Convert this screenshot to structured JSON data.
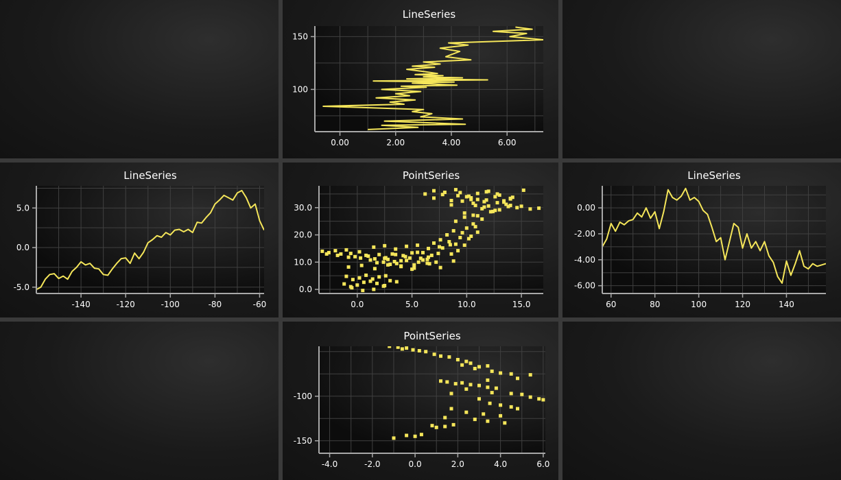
{
  "colors": {
    "series": "#f5e65a",
    "axis": "#a8a8a8",
    "grid": "#404040",
    "text": "#ffffff"
  },
  "chart_data": [
    {
      "id": "top",
      "type": "line",
      "title": "LineSeries",
      "xlim": [
        -0.9,
        7.3
      ],
      "ylim": [
        60,
        160
      ],
      "xticks": [
        0,
        2,
        4,
        6
      ],
      "xtick_labels": [
        "0.00",
        "2.00",
        "4.00",
        "6.00"
      ],
      "yticks": [
        100,
        150
      ],
      "ytick_labels": [
        "100",
        "150"
      ],
      "series": [
        {
          "x": [
            1.0,
            2.8,
            1.5,
            4.5,
            1.6,
            4.4,
            2.9,
            3.3,
            2.6,
            3.0,
            -0.6,
            2.3,
            1.8,
            2.7,
            1.3,
            2.5,
            2.0,
            2.9,
            1.5,
            3.1,
            2.2,
            4.2,
            2.6,
            4.1,
            1.2,
            5.3,
            2.4,
            4.4,
            3.0,
            3.7,
            2.7,
            3.5,
            3.0,
            2.4,
            3.4,
            2.6,
            3.6,
            3.0,
            4.7,
            3.8,
            4.0,
            4.3,
            3.6,
            4.6,
            3.9,
            7.3,
            6.1,
            6.7,
            5.5,
            6.9,
            6.3
          ],
          "y": [
            62,
            64,
            66,
            67,
            70,
            72,
            74,
            77,
            79,
            81,
            84,
            86,
            88,
            90,
            92,
            94,
            96,
            98,
            100,
            102,
            103,
            104,
            106,
            107,
            108,
            109,
            110,
            111,
            112,
            113,
            114,
            115,
            117,
            119,
            121,
            122,
            124,
            126,
            128,
            131,
            133,
            136,
            139,
            142,
            144,
            147,
            150,
            153,
            155,
            157,
            159
          ]
        }
      ]
    },
    {
      "id": "left",
      "type": "line",
      "title": "LineSeries",
      "xlim": [
        -160,
        -58
      ],
      "ylim": [
        -5.8,
        7.8
      ],
      "xticks": [
        -140,
        -120,
        -100,
        -80,
        -60
      ],
      "xtick_labels": [
        "-140",
        "-120",
        "-100",
        "-80",
        "-60"
      ],
      "yticks": [
        -5,
        0,
        5
      ],
      "ytick_labels": [
        "-5.0",
        "0.0",
        "5.0"
      ],
      "series": [
        {
          "x": [
            -160,
            -158,
            -156,
            -154,
            -152,
            -150,
            -148,
            -146,
            -144,
            -142,
            -140,
            -138,
            -136,
            -134,
            -132,
            -130,
            -128,
            -126,
            -124,
            -122,
            -120,
            -118,
            -116,
            -114,
            -112,
            -110,
            -108,
            -106,
            -104,
            -102,
            -100,
            -98,
            -96,
            -94,
            -92,
            -90,
            -88,
            -86,
            -84,
            -82,
            -80,
            -78,
            -76,
            -74,
            -72,
            -70,
            -68,
            -66,
            -64,
            -62,
            -60,
            -58
          ],
          "y": [
            -5.3,
            -5.0,
            -4.0,
            -3.4,
            -3.3,
            -3.9,
            -3.6,
            -4.0,
            -3.0,
            -2.5,
            -1.8,
            -2.2,
            -2.0,
            -2.6,
            -2.7,
            -3.4,
            -3.5,
            -2.7,
            -2.0,
            -1.4,
            -1.3,
            -2.0,
            -0.7,
            -1.4,
            -0.6,
            0.6,
            1.0,
            1.5,
            1.3,
            1.9,
            1.6,
            2.2,
            2.3,
            2.0,
            2.3,
            1.9,
            3.2,
            3.1,
            3.8,
            4.4,
            5.5,
            6.0,
            6.6,
            6.3,
            6.0,
            6.9,
            7.2,
            6.3,
            5.0,
            5.5,
            3.4,
            2.2
          ]
        }
      ]
    },
    {
      "id": "right",
      "type": "line",
      "title": "LineSeries",
      "xlim": [
        56,
        158
      ],
      "ylim": [
        -6.6,
        1.7
      ],
      "xticks": [
        60,
        80,
        100,
        120,
        140
      ],
      "xtick_labels": [
        "60",
        "80",
        "100",
        "120",
        "140"
      ],
      "yticks": [
        -6,
        -4,
        -2,
        0
      ],
      "ytick_labels": [
        "-6.00",
        "-4.00",
        "-2.00",
        "0.00"
      ],
      "series": [
        {
          "x": [
            56,
            58,
            60,
            62,
            64,
            66,
            68,
            70,
            72,
            74,
            76,
            78,
            80,
            82,
            84,
            86,
            88,
            90,
            92,
            94,
            96,
            98,
            100,
            102,
            104,
            106,
            108,
            110,
            112,
            114,
            116,
            118,
            120,
            122,
            124,
            126,
            128,
            130,
            132,
            134,
            136,
            138,
            140,
            142,
            144,
            146,
            148,
            150,
            152,
            154,
            156,
            158
          ],
          "y": [
            -3.0,
            -2.4,
            -1.2,
            -1.8,
            -1.1,
            -1.3,
            -1.0,
            -0.9,
            -0.4,
            -0.7,
            0.0,
            -0.8,
            -0.3,
            -1.6,
            -0.3,
            1.4,
            0.8,
            0.6,
            0.9,
            1.5,
            0.6,
            0.8,
            0.5,
            -0.2,
            -0.5,
            -1.5,
            -2.6,
            -2.3,
            -4.0,
            -2.6,
            -1.2,
            -1.5,
            -3.1,
            -2.0,
            -3.1,
            -2.6,
            -3.3,
            -2.6,
            -3.7,
            -4.2,
            -5.3,
            -5.8,
            -4.1,
            -5.2,
            -4.3,
            -3.3,
            -4.5,
            -4.7,
            -4.3,
            -4.5,
            -4.4,
            -4.3
          ]
        }
      ]
    },
    {
      "id": "center",
      "type": "scatter",
      "title": "PointSeries",
      "xlim": [
        -3.5,
        17.0
      ],
      "ylim": [
        -1.5,
        38.0
      ],
      "xticks": [
        0,
        5,
        10,
        15
      ],
      "xtick_labels": [
        "0.0",
        "5.0",
        "10.0",
        "15.0"
      ],
      "yticks": [
        0,
        10,
        20,
        30
      ],
      "ytick_labels": [
        "0.0",
        "10.0",
        "20.0",
        "30.0"
      ],
      "series": [
        {
          "x": [
            -3.2,
            -2.6,
            -2.0,
            -1.5,
            -1.0,
            -0.6,
            -0.2,
            0.3,
            0.8,
            1.2,
            1.6,
            2.0,
            2.4,
            2.8,
            3.2,
            3.6,
            4.0,
            4.4,
            4.8,
            5.2,
            5.6,
            6.0,
            6.4,
            6.8,
            7.2,
            -2.8,
            -1.8,
            -0.8,
            0.2,
            1.0,
            1.8,
            2.6,
            3.4,
            4.2,
            5.0,
            5.8,
            6.6,
            7.4,
            -1.0,
            -0.4,
            0.2,
            0.8,
            1.4,
            2.0,
            2.6,
            -1.2,
            -0.6,
            0.0,
            0.6,
            1.2,
            1.8,
            2.4,
            3.0,
            3.6,
            1.5,
            2.5,
            3.5,
            4.5,
            5.5,
            6.5,
            7.5,
            8.5,
            -0.8,
            0.4,
            1.6,
            2.8,
            4.0,
            5.2,
            6.4,
            7.6,
            8.8,
            7.0,
            7.6,
            8.2,
            8.8,
            9.4,
            10.0,
            10.6,
            7.8,
            8.4,
            9.0,
            9.6,
            10.2,
            10.8,
            8.6,
            9.2,
            9.8,
            10.4,
            11.0,
            9.0,
            9.8,
            10.6,
            11.4,
            12.2,
            6.2,
            7.0,
            7.8,
            8.6,
            9.4,
            10.2,
            11.0,
            11.8,
            12.6,
            13.4,
            14.2,
            15.0,
            15.8,
            16.6,
            7.0,
            8.0,
            9.0,
            10.0,
            11.0,
            12.0,
            13.0,
            14.0,
            8.6,
            9.6,
            10.6,
            11.6,
            12.6,
            13.6,
            14.6,
            9.8,
            10.8,
            11.8,
            12.8,
            13.8,
            10.4,
            11.4,
            12.4,
            13.4,
            11.0,
            12.0,
            13.0,
            14.0,
            9.2,
            10.4,
            11.6,
            12.8,
            14.0,
            15.2,
            2.5,
            3.5,
            4.5,
            5.5,
            6.5,
            3.0,
            4.0,
            5.0,
            6.0,
            -0.5,
            0.5,
            1.5,
            2.5
          ],
          "y": [
            14.0,
            13.5,
            14.2,
            13.0,
            14.5,
            13.2,
            12.0,
            11.5,
            12.5,
            10.8,
            11.2,
            12.8,
            10.0,
            11.0,
            13.0,
            9.5,
            10.5,
            12.0,
            11.5,
            9.0,
            10.0,
            13.5,
            11.0,
            12.5,
            10.0,
            13.0,
            12.5,
            11.8,
            13.8,
            12.2,
            9.8,
            11.6,
            10.2,
            12.4,
            13.4,
            11.4,
            9.4,
            13.2,
            4.8,
            3.6,
            4.2,
            5.2,
            3.8,
            4.6,
            5.0,
            2.0,
            1.0,
            1.6,
            2.6,
            3.0,
            2.2,
            1.2,
            3.2,
            2.8,
            15.5,
            16.0,
            14.8,
            15.8,
            16.2,
            15.0,
            15.6,
            16.4,
            8.2,
            8.8,
            7.6,
            9.0,
            8.4,
            7.8,
            9.6,
            8.0,
            10.4,
            17.0,
            18.2,
            20.0,
            21.5,
            19.0,
            22.5,
            24.0,
            15.2,
            17.5,
            16.6,
            20.8,
            18.6,
            23.0,
            13.0,
            14.2,
            16.2,
            19.5,
            21.0,
            25.0,
            26.5,
            27.2,
            25.8,
            28.5,
            35.0,
            33.5,
            34.8,
            32.6,
            35.5,
            34.2,
            33.0,
            35.8,
            34.0,
            32.5,
            33.8,
            30.5,
            29.5,
            29.8,
            36.2,
            35.6,
            36.6,
            34.0,
            35.2,
            36.0,
            34.6,
            33.2,
            31.0,
            32.4,
            31.6,
            30.2,
            29.0,
            31.2,
            30.0,
            28.0,
            30.8,
            32.8,
            31.8,
            30.4,
            33.6,
            29.6,
            28.6,
            32.0,
            27.0,
            30.6,
            29.2,
            30.8,
            34.4,
            33.0,
            32.2,
            35.0,
            33.4,
            36.4,
            11.4,
            12.8,
            10.6,
            13.6,
            11.8,
            9.2,
            8.6,
            7.4,
            10.8,
            0.6,
            -0.4,
            0.0,
            1.4
          ]
        }
      ]
    },
    {
      "id": "bottom",
      "type": "scatter",
      "title": "PointSeries",
      "xlim": [
        -4.5,
        6.1
      ],
      "ylim": [
        -164,
        -44
      ],
      "xticks": [
        -4,
        -2,
        0,
        2,
        4,
        6
      ],
      "xtick_labels": [
        "-4.0",
        "-2.0",
        "0.0",
        "2.0",
        "4.0",
        "6.0"
      ],
      "yticks": [
        -100,
        -150
      ],
      "ytick_labels": [
        "-100",
        "-150"
      ],
      "series": [
        {
          "x": [
            -1.2,
            -0.8,
            -0.6,
            -0.4,
            -0.1,
            0.2,
            0.5,
            0.9,
            1.2,
            1.6,
            2.0,
            2.4,
            2.2,
            2.6,
            3.0,
            3.4,
            2.8,
            3.6,
            4.0,
            4.5,
            5.4,
            4.8,
            3.4,
            1.2,
            1.5,
            1.9,
            2.2,
            2.6,
            3.0,
            3.4,
            3.8,
            2.4,
            3.6,
            1.7,
            4.5,
            5.0,
            5.4,
            5.8,
            6.0,
            3.0,
            3.5,
            4.0,
            4.5,
            4.8,
            1.7,
            2.4,
            3.2,
            4.0,
            1.4,
            2.8,
            3.4,
            4.2,
            0.8,
            1.0,
            1.4,
            1.8,
            -0.4,
            0.0,
            0.3,
            -1.0
          ],
          "y": [
            -44,
            -45,
            -47,
            -46,
            -48,
            -49,
            -50,
            -53,
            -55,
            -56,
            -59,
            -61,
            -65,
            -63,
            -67,
            -66,
            -69,
            -72,
            -74,
            -75,
            -76,
            -80,
            -82,
            -83,
            -84,
            -86,
            -85,
            -87,
            -88,
            -90,
            -91,
            -92,
            -96,
            -97,
            -97,
            -98,
            -101,
            -103,
            -104,
            -103,
            -108,
            -110,
            -112,
            -114,
            -114,
            -118,
            -120,
            -122,
            -124,
            -126,
            -128,
            -130,
            -133,
            -135,
            -134,
            -132,
            -144,
            -145,
            -143,
            -147
          ]
        }
      ]
    }
  ]
}
